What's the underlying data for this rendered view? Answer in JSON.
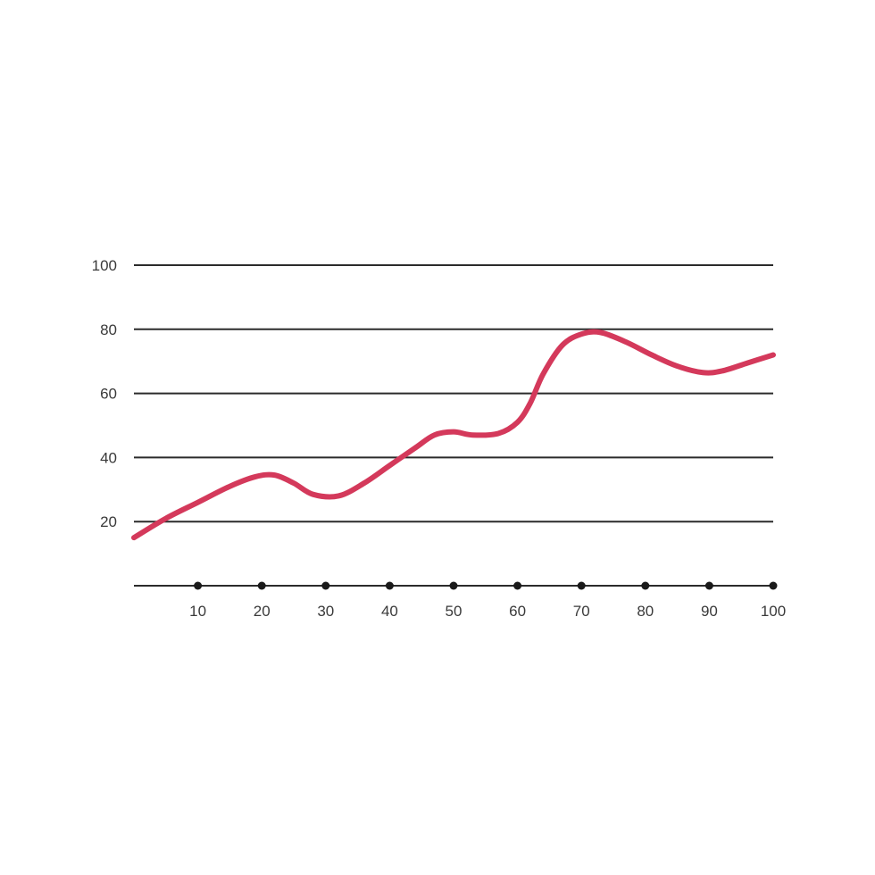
{
  "chart_data": {
    "type": "line",
    "title": "",
    "xlabel": "",
    "ylabel": "",
    "xlim": [
      0,
      100
    ],
    "ylim": [
      0,
      100
    ],
    "x_ticks": [
      "10",
      "20",
      "30",
      "40",
      "50",
      "60",
      "70",
      "80",
      "90",
      "100"
    ],
    "x_tick_values": [
      10,
      20,
      30,
      40,
      50,
      60,
      70,
      80,
      90,
      100
    ],
    "y_ticks": [
      "20",
      "40",
      "60",
      "80",
      "100"
    ],
    "y_tick_values": [
      20,
      40,
      60,
      80,
      100
    ],
    "grid": true,
    "legend": "none",
    "series": [
      {
        "color": "#d4395b",
        "x": [
          0,
          5,
          10,
          15,
          19,
          22,
          25,
          28,
          32,
          36,
          40,
          44,
          47,
          50,
          53,
          57,
          60,
          62,
          64,
          67,
          70,
          73,
          77,
          81,
          85,
          89,
          92,
          96,
          100
        ],
        "y": [
          15,
          21,
          26,
          31,
          34,
          34.5,
          32,
          28.5,
          28,
          32,
          37.5,
          43,
          47,
          48,
          47,
          47.5,
          51,
          57,
          66,
          75,
          78.5,
          79,
          76,
          72,
          68.5,
          66.5,
          67,
          69.5,
          72
        ]
      }
    ]
  }
}
